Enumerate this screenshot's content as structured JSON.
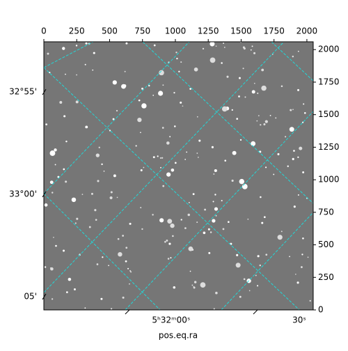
{
  "chart_data": {
    "type": "image",
    "xlabel": "pos.eq.ra",
    "xlim": [
      0,
      2048
    ],
    "xticks": [
      0,
      250,
      500,
      750,
      1000,
      1250,
      1500,
      1750,
      2000
    ],
    "ylim": [
      0,
      2060
    ],
    "yticks": [
      0,
      250,
      500,
      750,
      1000,
      1250,
      1500,
      1750,
      2000
    ],
    "dec_ticks": [
      {
        "value": 1674,
        "label": "32°55'"
      },
      {
        "value": 888,
        "label": "33°00'"
      },
      {
        "value": 102,
        "label": "05'"
      }
    ],
    "ra_ticks": [
      {
        "value": 968,
        "label": "5ʰ32ᵐ00ˢ"
      },
      {
        "value": 1942,
        "label": "30ˢ"
      }
    ]
  }
}
